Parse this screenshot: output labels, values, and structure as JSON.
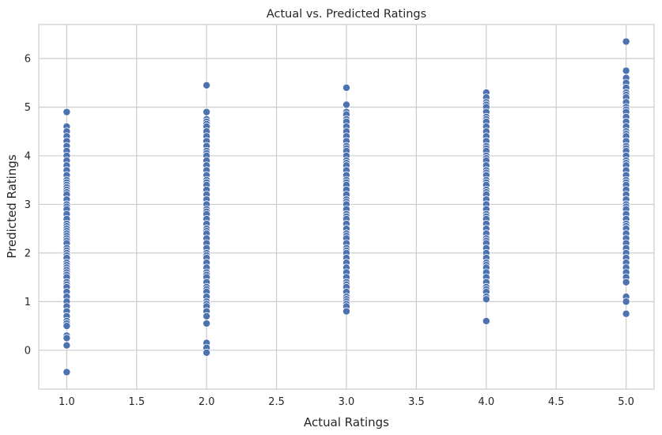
{
  "chart_data": {
    "type": "scatter",
    "title": "Actual vs. Predicted Ratings",
    "xlabel": "Actual Ratings",
    "ylabel": "Predicted Ratings",
    "xlim": [
      0.8,
      5.2
    ],
    "ylim": [
      -0.8,
      6.7
    ],
    "x_ticks": [
      "1.0",
      "1.5",
      "2.0",
      "2.5",
      "3.0",
      "3.5",
      "4.0",
      "4.5",
      "5.0"
    ],
    "y_ticks": [
      "0",
      "1",
      "2",
      "3",
      "4",
      "5",
      "6"
    ],
    "grid": true,
    "point_color": "#4c72b0",
    "series": [
      {
        "x": 1.0,
        "y": [
          4.9,
          4.6,
          4.5,
          4.4,
          4.3,
          4.2,
          4.1,
          4.0,
          3.9,
          3.8,
          3.7,
          3.6,
          3.5,
          3.45,
          3.4,
          3.35,
          3.3,
          3.25,
          3.2,
          3.1,
          3.0,
          2.95,
          2.9,
          2.8,
          2.7,
          2.6,
          2.55,
          2.5,
          2.45,
          2.4,
          2.35,
          2.3,
          2.25,
          2.2,
          2.1,
          2.05,
          2.0,
          1.95,
          1.9,
          1.8,
          1.75,
          1.7,
          1.65,
          1.6,
          1.55,
          1.5,
          1.4,
          1.35,
          1.3,
          1.2,
          1.1,
          1.0,
          0.9,
          0.8,
          0.7,
          0.6,
          0.55,
          0.5,
          0.3,
          0.25,
          0.1,
          -0.45
        ]
      },
      {
        "x": 2.0,
        "y": [
          5.45,
          4.9,
          4.75,
          4.7,
          4.65,
          4.6,
          4.5,
          4.4,
          4.3,
          4.2,
          4.1,
          4.05,
          4.0,
          3.9,
          3.8,
          3.7,
          3.6,
          3.5,
          3.45,
          3.4,
          3.3,
          3.2,
          3.1,
          3.0,
          2.9,
          2.85,
          2.8,
          2.7,
          2.6,
          2.5,
          2.45,
          2.4,
          2.3,
          2.2,
          2.1,
          2.0,
          1.95,
          1.9,
          1.8,
          1.7,
          1.6,
          1.55,
          1.5,
          1.4,
          1.3,
          1.25,
          1.2,
          1.1,
          1.0,
          0.95,
          0.9,
          0.8,
          0.7,
          0.55,
          0.15,
          0.05,
          -0.05
        ]
      },
      {
        "x": 3.0,
        "y": [
          5.4,
          5.05,
          4.9,
          4.85,
          4.75,
          4.7,
          4.6,
          4.5,
          4.4,
          4.3,
          4.2,
          4.15,
          4.1,
          4.0,
          3.9,
          3.85,
          3.8,
          3.7,
          3.6,
          3.5,
          3.45,
          3.4,
          3.3,
          3.2,
          3.1,
          3.05,
          3.0,
          2.9,
          2.8,
          2.75,
          2.7,
          2.6,
          2.5,
          2.4,
          2.35,
          2.3,
          2.2,
          2.1,
          2.05,
          2.0,
          1.9,
          1.8,
          1.7,
          1.6,
          1.5,
          1.4,
          1.35,
          1.3,
          1.2,
          1.1,
          1.05,
          1.0,
          0.95,
          0.9,
          0.8
        ]
      },
      {
        "x": 4.0,
        "y": [
          5.3,
          5.2,
          5.1,
          5.05,
          5.0,
          4.9,
          4.8,
          4.75,
          4.7,
          4.6,
          4.5,
          4.4,
          4.3,
          4.2,
          4.15,
          4.1,
          4.0,
          3.95,
          3.9,
          3.8,
          3.7,
          3.65,
          3.6,
          3.5,
          3.45,
          3.4,
          3.3,
          3.25,
          3.2,
          3.1,
          3.0,
          2.9,
          2.8,
          2.75,
          2.7,
          2.6,
          2.5,
          2.4,
          2.3,
          2.25,
          2.2,
          2.1,
          2.0,
          1.9,
          1.8,
          1.75,
          1.7,
          1.6,
          1.5,
          1.4,
          1.3,
          1.25,
          1.2,
          1.1,
          1.05,
          0.6
        ]
      },
      {
        "x": 5.0,
        "y": [
          6.35,
          5.75,
          5.6,
          5.5,
          5.4,
          5.3,
          5.25,
          5.2,
          5.1,
          5.0,
          4.95,
          4.9,
          4.8,
          4.7,
          4.6,
          4.5,
          4.45,
          4.4,
          4.3,
          4.2,
          4.15,
          4.1,
          4.0,
          3.9,
          3.85,
          3.8,
          3.7,
          3.6,
          3.5,
          3.45,
          3.4,
          3.3,
          3.2,
          3.1,
          3.0,
          2.95,
          2.9,
          2.8,
          2.7,
          2.6,
          2.55,
          2.5,
          2.4,
          2.3,
          2.2,
          2.1,
          2.0,
          1.9,
          1.8,
          1.7,
          1.6,
          1.5,
          1.4,
          1.1,
          1.0,
          0.75
        ]
      }
    ]
  }
}
